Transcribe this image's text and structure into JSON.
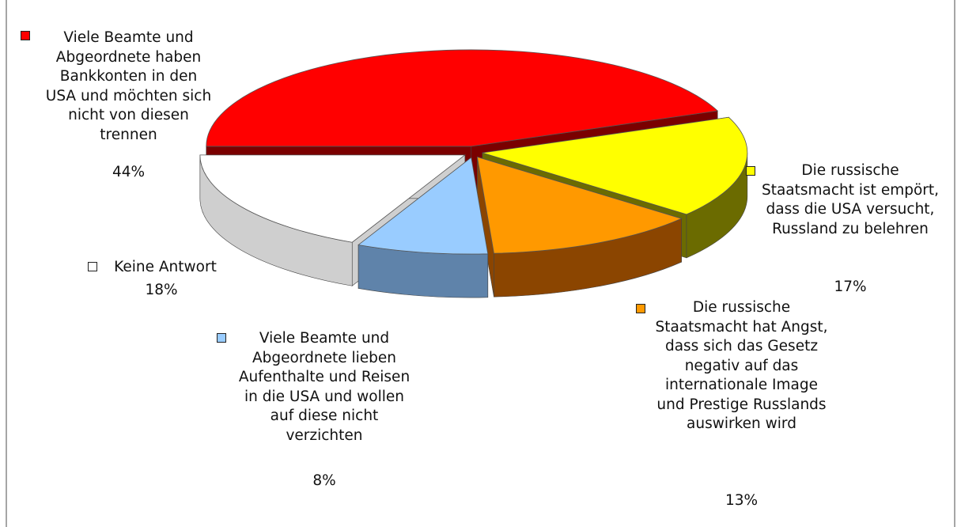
{
  "chart_data": {
    "type": "pie",
    "categories": [
      "Viele Beamte und Abgeordnete haben Bankkonten in den USA und möchten sich nicht von diesen trennen",
      "Die russische Staatsmacht ist empört, dass die USA versucht, Russland zu belehren",
      "Die russische Staatsmacht hat Angst, dass sich das Gesetz negativ auf das internationale Image und Prestige Russlands auswirken wird",
      "Viele Beamte und Abgeordnete lieben Aufenthalte und Reisen in die USA und wollen auf diese nicht verzichten",
      "Keine Antwort"
    ],
    "values": [
      44,
      17,
      13,
      8,
      18
    ],
    "value_labels": [
      "44%",
      "17%",
      "13%",
      "8%",
      "18%"
    ],
    "colors": [
      "#ff0000",
      "#ffff00",
      "#ff9900",
      "#99ccff",
      "#ffffff"
    ]
  }
}
